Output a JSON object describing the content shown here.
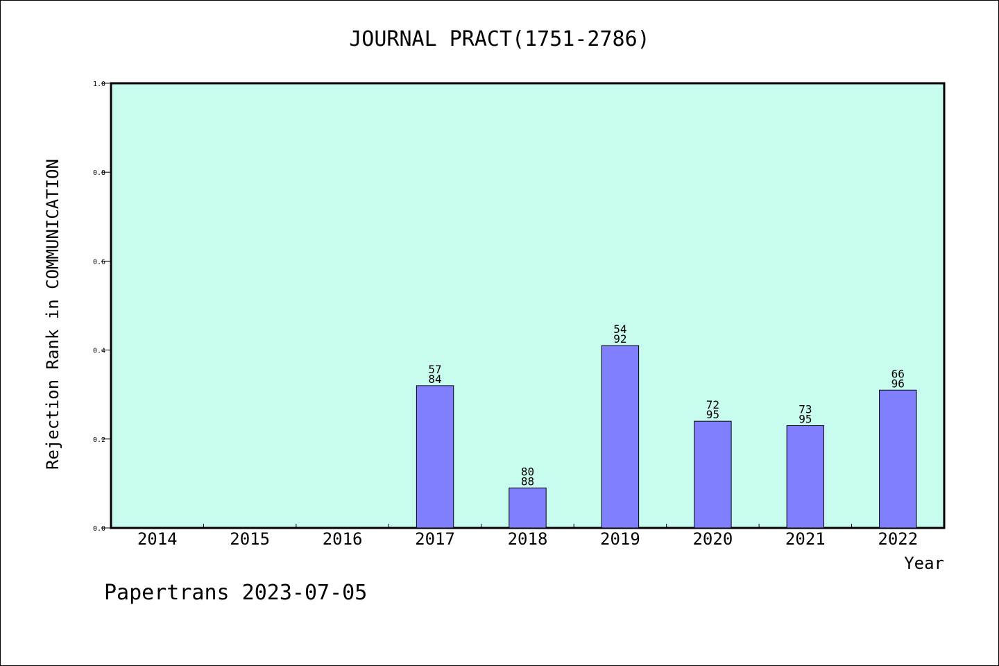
{
  "chart_data": {
    "type": "bar",
    "title": "JOURNAL PRACT(1751-2786)",
    "xlabel": "Year",
    "ylabel": "Rejection Rank in COMMUNICATION",
    "footer": "Papertrans 2023-07-05",
    "ylim": [
      0,
      1.0
    ],
    "yticks": [
      "0.0",
      "0.2",
      "0.4",
      "0.6",
      "0.8",
      "1.0"
    ],
    "categories": [
      "2014",
      "2015",
      "2016",
      "2017",
      "2018",
      "2019",
      "2020",
      "2021",
      "2022"
    ],
    "values": [
      null,
      null,
      null,
      0.32,
      0.09,
      0.41,
      0.24,
      0.23,
      0.31
    ],
    "labels": [
      null,
      null,
      null,
      [
        "57",
        "84"
      ],
      [
        "80",
        "88"
      ],
      [
        "54",
        "92"
      ],
      [
        "72",
        "95"
      ],
      [
        "73",
        "95"
      ],
      [
        "66",
        "96"
      ]
    ],
    "grid": false,
    "colors": {
      "plot_background": "#c8fcee",
      "bar_fill": "#8080ff",
      "axis": "#000000"
    }
  }
}
